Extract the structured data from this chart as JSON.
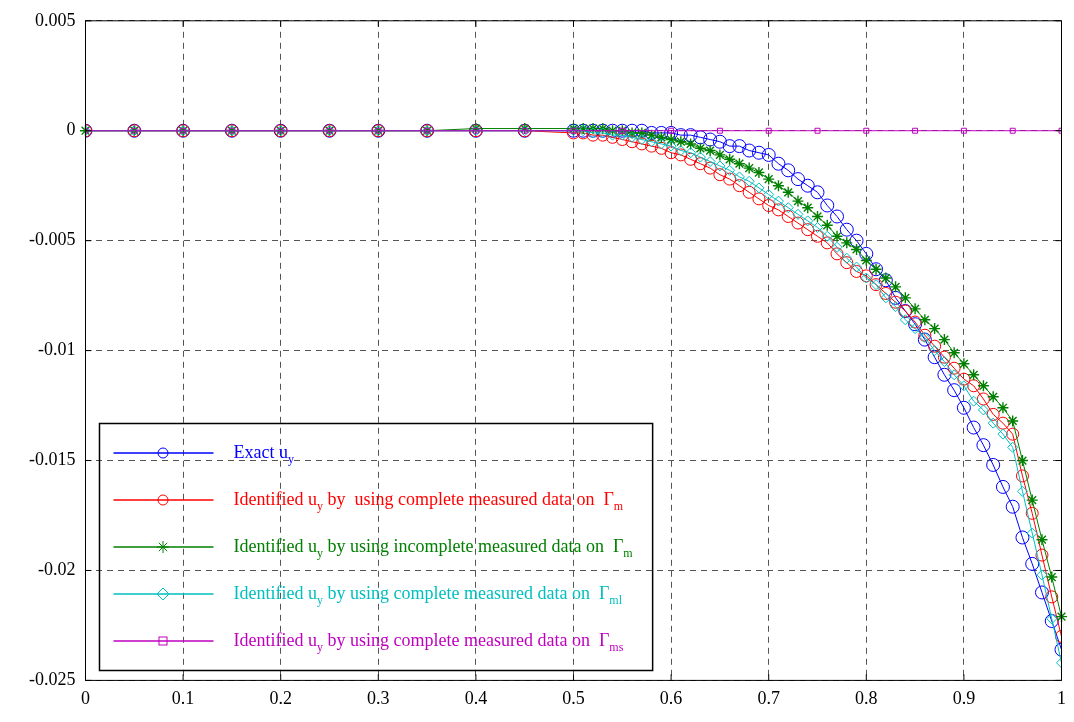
{
  "chart_data": {
    "type": "line",
    "xlim": [
      0,
      1
    ],
    "xticks": [
      0,
      0.1,
      0.2,
      0.3,
      0.4,
      0.5,
      0.6,
      0.7,
      0.8,
      0.9,
      1
    ],
    "ylim": [
      -0.025,
      0.005
    ],
    "yticks": [
      -0.025,
      -0.02,
      -0.015,
      -0.01,
      -0.005,
      0,
      0.005
    ],
    "grid": true,
    "legend": "bottom left",
    "x": [
      0,
      0.05,
      0.1,
      0.15,
      0.2,
      0.25,
      0.3,
      0.35,
      0.4,
      0.45,
      0.5,
      0.51,
      0.52,
      0.53,
      0.54,
      0.55,
      0.56,
      0.57,
      0.58,
      0.59,
      0.6,
      0.61,
      0.62,
      0.63,
      0.64,
      0.65,
      0.66,
      0.67,
      0.68,
      0.69,
      0.7,
      0.71,
      0.72,
      0.73,
      0.74,
      0.75,
      0.76,
      0.77,
      0.78,
      0.79,
      0.8,
      0.81,
      0.82,
      0.83,
      0.84,
      0.85,
      0.86,
      0.87,
      0.88,
      0.89,
      0.9,
      0.91,
      0.92,
      0.93,
      0.94,
      0.95,
      0.96,
      0.97,
      0.98,
      0.99,
      1
    ],
    "series": [
      {
        "name": "Exact u$_{y}$",
        "color": "#0000ff",
        "marker": "circle",
        "values": [
          0,
          0,
          0,
          0,
          0,
          0,
          0,
          0,
          0,
          0,
          0,
          0,
          0,
          0,
          0,
          0,
          0,
          0,
          -0.0001,
          -0.0001,
          -0.0001,
          -0.0002,
          -0.0002,
          -0.0003,
          -0.0004,
          -0.0005,
          -0.0007,
          -0.0007,
          -0.0009,
          -0.001,
          -0.0011,
          -0.0015,
          -0.0018,
          -0.0022,
          -0.0025,
          -0.0028,
          -0.0034,
          -0.0039,
          -0.0045,
          -0.005,
          -0.0056,
          -0.0063,
          -0.0068,
          -0.0076,
          -0.0082,
          -0.0088,
          -0.0095,
          -0.0103,
          -0.0111,
          -0.0118,
          -0.0126,
          -0.0135,
          -0.0143,
          -0.0152,
          -0.0162,
          -0.0171,
          -0.0185,
          -0.0197,
          -0.021,
          -0.0223,
          -0.0236
        ]
      },
      {
        "name": "Identified u$_{y}$ by  using complete measured data on  Γ$_{m}$",
        "color": "#ff0000",
        "marker": "circle",
        "values": [
          0,
          0,
          0,
          0,
          0,
          0,
          0,
          0,
          0,
          0,
          -0.0001,
          -0.0001,
          -0.0002,
          -0.0002,
          -0.0003,
          -0.0004,
          -0.0005,
          -0.0006,
          -0.0007,
          -0.0008,
          -0.001,
          -0.0011,
          -0.0013,
          -0.0015,
          -0.0017,
          -0.002,
          -0.0022,
          -0.0025,
          -0.0028,
          -0.0031,
          -0.0034,
          -0.0036,
          -0.0039,
          -0.0042,
          -0.0045,
          -0.0048,
          -0.0051,
          -0.0056,
          -0.006,
          -0.0064,
          -0.0066,
          -0.007,
          -0.0074,
          -0.0078,
          -0.0082,
          -0.0087,
          -0.0093,
          -0.0098,
          -0.0103,
          -0.0108,
          -0.0113,
          -0.0116,
          -0.0122,
          -0.0129,
          -0.0133,
          -0.0138,
          -0.0157,
          -0.0174,
          -0.0193,
          -0.0212,
          -0.023
        ]
      },
      {
        "name": "Identified u$_{y}$ by using incomplete measured data on  Γ$_{m}$",
        "color": "#008000",
        "marker": "star",
        "values": [
          0,
          0,
          0,
          0,
          0,
          0,
          0,
          0,
          0.0001,
          0.0001,
          0.0001,
          0.0001,
          0.0001,
          0.0001,
          0,
          0,
          -0.0001,
          -0.0001,
          -0.0002,
          -0.0003,
          -0.0004,
          -0.0005,
          -0.0006,
          -0.0008,
          -0.0009,
          -0.0011,
          -0.0013,
          -0.0015,
          -0.0017,
          -0.0019,
          -0.0022,
          -0.0025,
          -0.0028,
          -0.0032,
          -0.0035,
          -0.0039,
          -0.0043,
          -0.0048,
          -0.0051,
          -0.0054,
          -0.0059,
          -0.0063,
          -0.0067,
          -0.0071,
          -0.0076,
          -0.0081,
          -0.0086,
          -0.009,
          -0.0095,
          -0.0101,
          -0.0106,
          -0.0111,
          -0.0116,
          -0.0121,
          -0.0126,
          -0.0132,
          -0.015,
          -0.0168,
          -0.0186,
          -0.0203,
          -0.0221
        ]
      },
      {
        "name": "Identified u$_{y}$ by using complete measured data on  Γ$_{ml}$",
        "color": "#00bfbf",
        "marker": "diamond",
        "values": [
          0,
          0,
          0,
          0,
          0,
          0,
          0,
          0,
          0,
          0,
          0,
          0,
          -0.0001,
          -0.0001,
          -0.0002,
          -0.0002,
          -0.0003,
          -0.0004,
          -0.0005,
          -0.0006,
          -0.0007,
          -0.0009,
          -0.001,
          -0.0012,
          -0.0014,
          -0.0016,
          -0.0018,
          -0.0021,
          -0.0023,
          -0.0026,
          -0.0029,
          -0.0032,
          -0.0035,
          -0.0038,
          -0.0041,
          -0.0044,
          -0.0048,
          -0.0053,
          -0.0058,
          -0.0062,
          -0.0067,
          -0.007,
          -0.0076,
          -0.008,
          -0.0086,
          -0.009,
          -0.0094,
          -0.01,
          -0.0105,
          -0.0111,
          -0.0116,
          -0.0123,
          -0.0127,
          -0.0133,
          -0.0138,
          -0.0144,
          -0.0164,
          -0.0183,
          -0.0202,
          -0.0222,
          -0.0242
        ]
      },
      {
        "name": "Identified u$_{y}$ by using complete measured data on  Γ$_{ms}$",
        "color": "#bf00bf",
        "marker": "square",
        "x": [
          0,
          0.05,
          0.1,
          0.15,
          0.2,
          0.25,
          0.3,
          0.35,
          0.4,
          0.45,
          0.5,
          0.55,
          0.6,
          0.65,
          0.7,
          0.75,
          0.8,
          0.85,
          0.9,
          0.95,
          1
        ],
        "values": [
          0,
          0,
          0,
          0,
          0,
          0,
          0,
          0,
          0,
          0,
          0,
          0,
          0,
          0,
          0,
          0,
          0,
          0,
          0,
          0,
          0
        ]
      }
    ]
  }
}
